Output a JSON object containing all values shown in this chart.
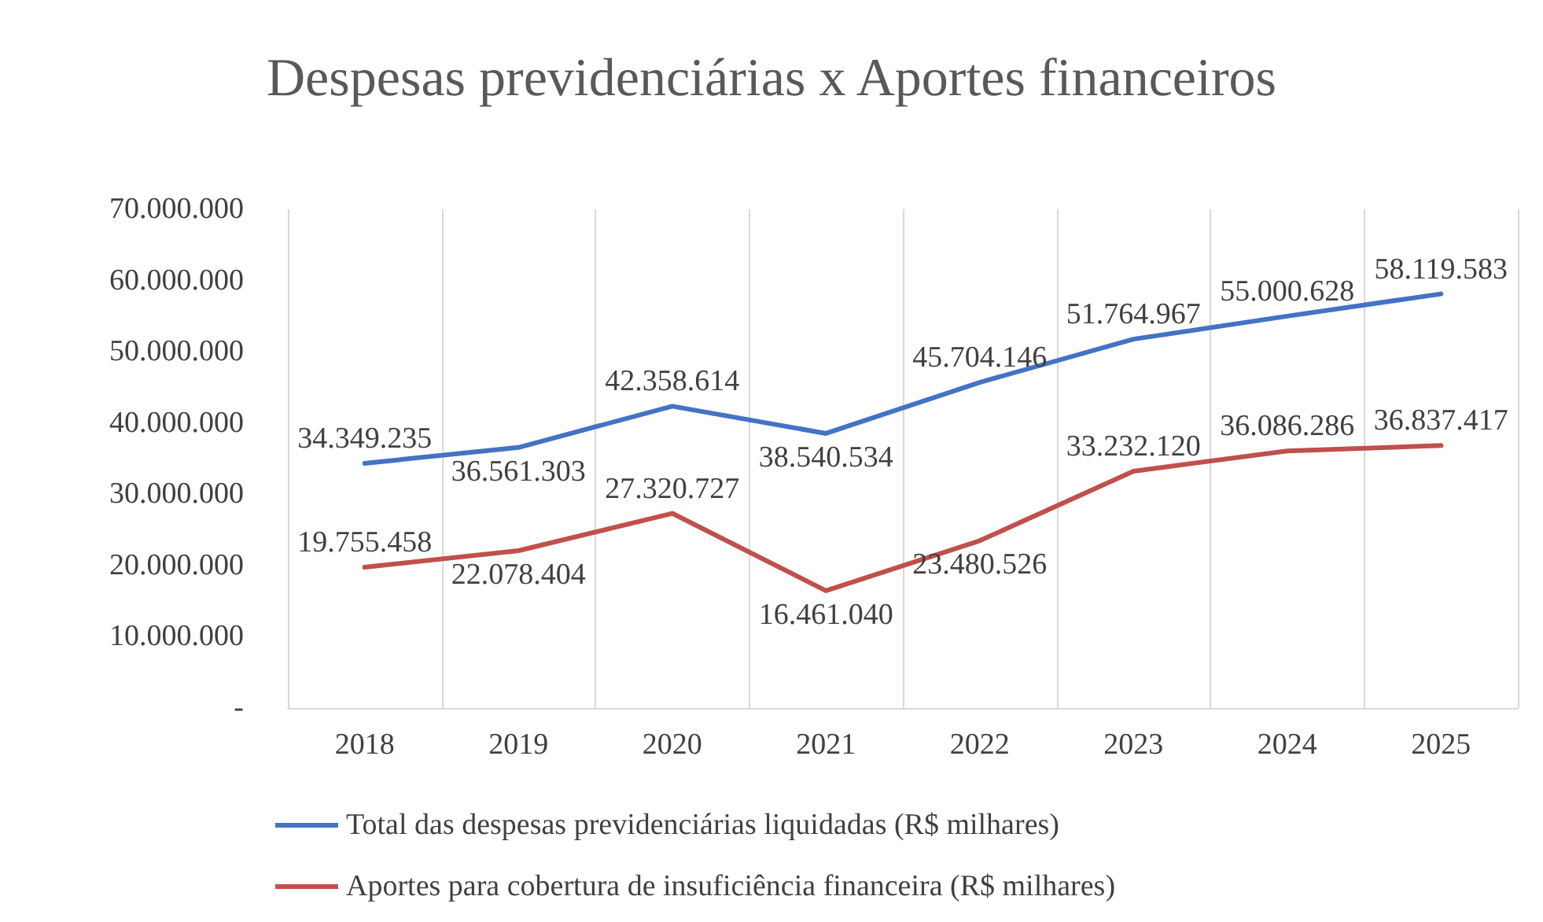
{
  "chart_data": {
    "type": "line",
    "title": "Despesas previdenciárias x Aportes financeiros",
    "categories": [
      "2018",
      "2019",
      "2020",
      "2021",
      "2022",
      "2023",
      "2024",
      "2025"
    ],
    "series": [
      {
        "name": "Total das despesas previdenciárias liquidadas (R$ milhares)",
        "color": "#4472c4",
        "values": [
          34349235,
          36561303,
          42358614,
          38540534,
          45704146,
          51764967,
          55000628,
          58119583
        ],
        "value_labels": [
          "34.349.235",
          "36.561.303",
          "42.358.614",
          "38.540.534",
          "45.704.146",
          "51.764.967",
          "55.000.628",
          "58.119.583"
        ]
      },
      {
        "name": "Aportes para cobertura de insuficiência financeira (R$ milhares)",
        "color": "#c0504d",
        "values": [
          19755458,
          22078404,
          27320727,
          16461040,
          23480526,
          33232120,
          36086286,
          36837417
        ],
        "value_labels": [
          "19.755.458",
          "22.078.404",
          "27.320.727",
          "16.461.040",
          "23.480.526",
          "33.232.120",
          "36.086.286",
          "36.837.417"
        ]
      }
    ],
    "ylim": [
      0,
      70000000
    ],
    "yticks": [
      {
        "value": 0,
        "label": "-"
      },
      {
        "value": 10000000,
        "label": "10.000.000"
      },
      {
        "value": 20000000,
        "label": "20.000.000"
      },
      {
        "value": 30000000,
        "label": "30.000.000"
      },
      {
        "value": 40000000,
        "label": "40.000.000"
      },
      {
        "value": 50000000,
        "label": "50.000.000"
      },
      {
        "value": 60000000,
        "label": "60.000.000"
      },
      {
        "value": 70000000,
        "label": "70.000.000"
      }
    ],
    "grid": "x",
    "legend": "bottom",
    "marker": "none",
    "line_style": "solid"
  }
}
